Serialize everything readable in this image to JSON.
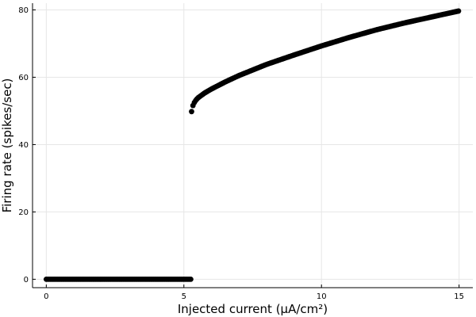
{
  "chart_data": {
    "type": "scatter",
    "title": "",
    "xlabel": "Injected current (μA/cm²)",
    "ylabel": "Firing rate (spikes/sec)",
    "xlim": [
      -0.5,
      15.5
    ],
    "ylim": [
      -2.5,
      82
    ],
    "xticks": [
      0,
      5,
      10,
      15
    ],
    "yticks": [
      0,
      20,
      40,
      60,
      80
    ],
    "grid": true,
    "legend": "none",
    "series": [
      {
        "color": "#000000",
        "segments": [
          {
            "x_start": 0,
            "x_end": 5.25,
            "step": 0.05,
            "rule": "constant",
            "value": 0
          },
          {
            "x_start": 5.28,
            "x_end": 15,
            "step": 0.05,
            "rule": "interpolate",
            "points": [
              [
                5.28,
                49.8
              ],
              [
                5.3,
                51.0
              ],
              [
                5.35,
                52.0
              ],
              [
                5.4,
                52.8
              ],
              [
                5.5,
                53.8
              ],
              [
                5.75,
                55.3
              ],
              [
                6.0,
                56.5
              ],
              [
                6.5,
                58.6
              ],
              [
                7.0,
                60.5
              ],
              [
                8.0,
                63.8
              ],
              [
                9.0,
                66.6
              ],
              [
                10.0,
                69.3
              ],
              [
                11.0,
                71.8
              ],
              [
                12.0,
                74.1
              ],
              [
                13.0,
                76.1
              ],
              [
                14.0,
                77.9
              ],
              [
                15.0,
                79.7
              ]
            ]
          }
        ]
      }
    ]
  }
}
